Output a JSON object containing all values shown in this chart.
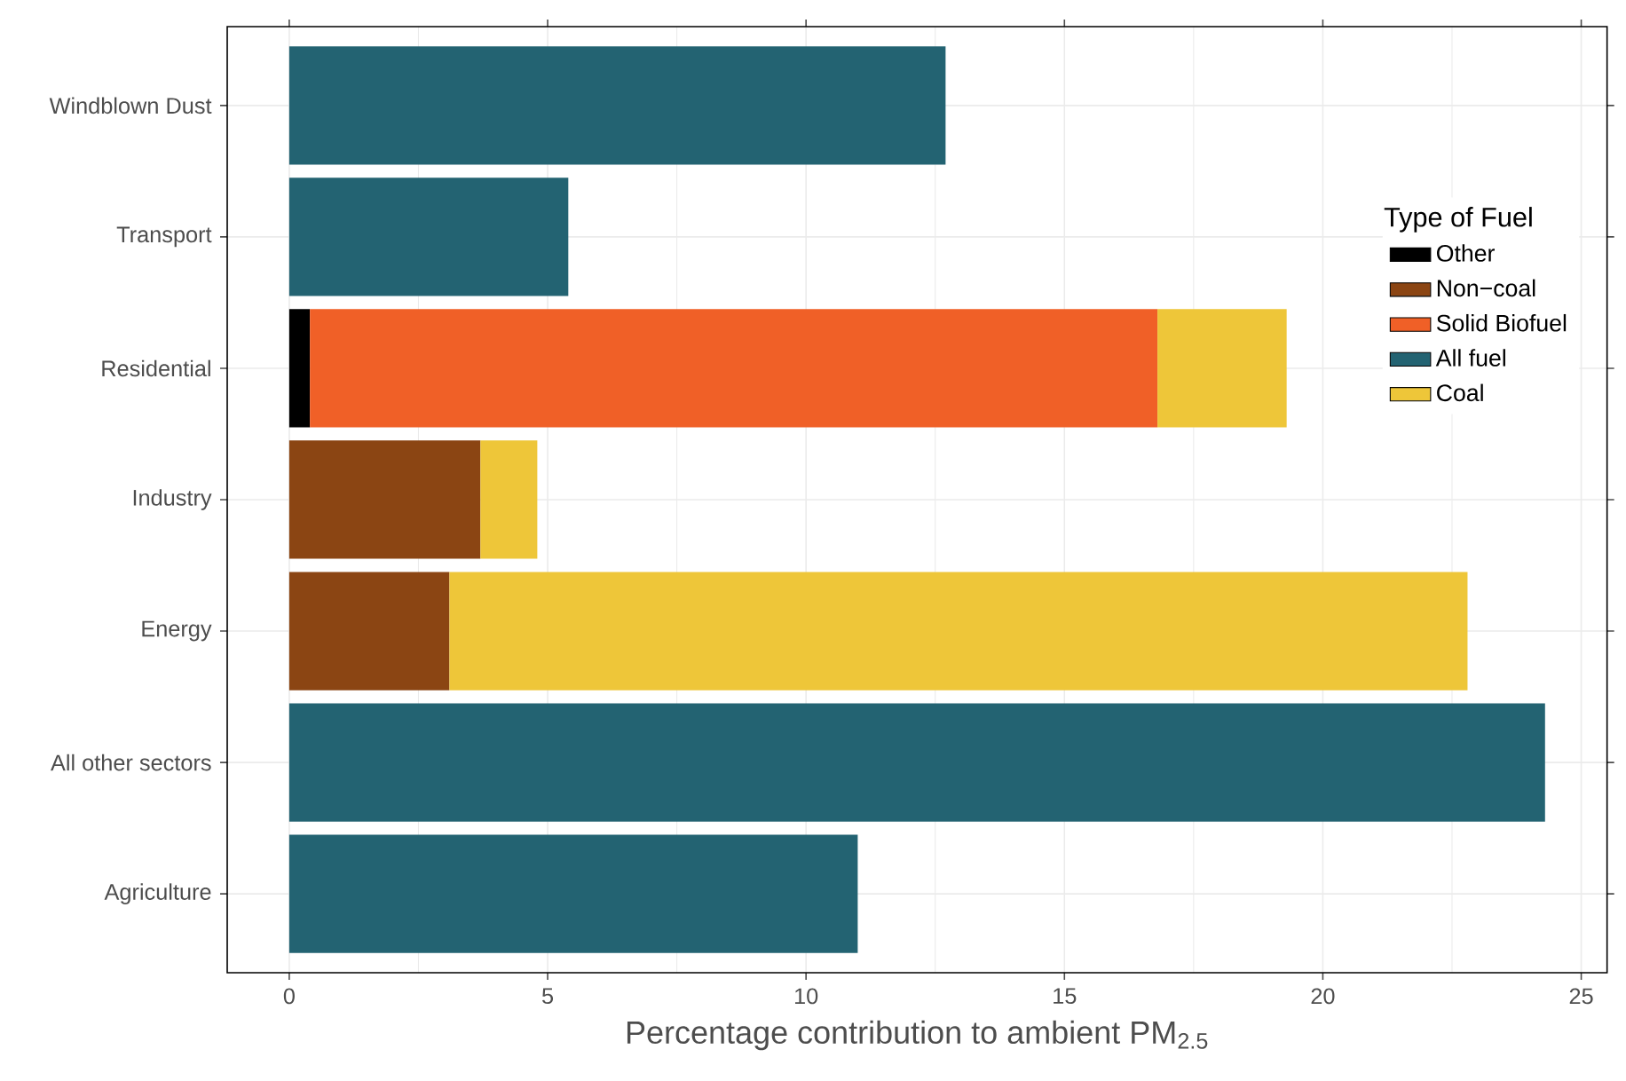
{
  "chart_data": {
    "type": "bar",
    "orientation": "horizontal",
    "stacked": true,
    "categories": [
      "Windblown Dust",
      "Transport",
      "Residential",
      "Industry",
      "Energy",
      "All other sectors",
      "Agriculture"
    ],
    "series": [
      {
        "name": "Other",
        "color": "#000000",
        "values": [
          null,
          null,
          0.4,
          null,
          null,
          null,
          null
        ]
      },
      {
        "name": "Non−coal",
        "color": "#8b4513",
        "values": [
          null,
          null,
          null,
          3.7,
          3.1,
          null,
          null
        ]
      },
      {
        "name": "Solid Biofuel",
        "color": "#f06027",
        "values": [
          null,
          null,
          16.4,
          null,
          null,
          null,
          null
        ]
      },
      {
        "name": "All fuel",
        "color": "#236372",
        "values": [
          12.7,
          5.4,
          null,
          null,
          null,
          24.3,
          11.0
        ]
      },
      {
        "name": "Coal",
        "color": "#eec639",
        "values": [
          null,
          null,
          2.5,
          1.1,
          19.7,
          null,
          null
        ]
      }
    ],
    "xlabel": "Percentage contribution to ambient PM$_{2.5}$",
    "legend_title": "Type of Fuel",
    "xlim": [
      -1.2,
      25.5
    ],
    "xticks": [
      0,
      5,
      10,
      15,
      20,
      25
    ],
    "grid": true,
    "legend": "right"
  }
}
